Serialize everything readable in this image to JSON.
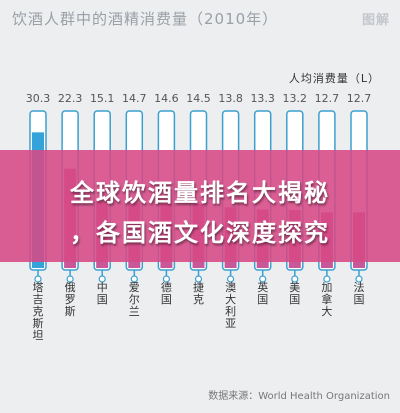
{
  "header": {
    "title": "饮酒人群中的酒精消费量（2010年）",
    "logo_text": "图解"
  },
  "banner": {
    "line1": "全球饮酒量排名大揭秘",
    "line2": "，各国酒文化深度探究"
  },
  "source": "数据来源：World Health Organization",
  "colors": {
    "first_fill": "#33a3d9",
    "fill": "#c9589a",
    "tube_border": "#3aa0cf",
    "value_text": "#555555",
    "label_text": "#333333"
  },
  "chart_data": {
    "type": "bar",
    "title": "饮酒人群中的酒精消费量（2010年）",
    "unit_label": "人均消费量（L）",
    "categories": [
      "塔吉克斯坦",
      "俄罗斯",
      "中国",
      "爱尔兰",
      "德国",
      "捷克",
      "澳大利亚",
      "英国",
      "美国",
      "加拿大",
      "法国"
    ],
    "values": [
      30.3,
      22.3,
      15.1,
      14.7,
      14.6,
      14.5,
      13.8,
      13.3,
      13.2,
      12.7,
      12.7
    ],
    "ylim": [
      0,
      35
    ]
  }
}
